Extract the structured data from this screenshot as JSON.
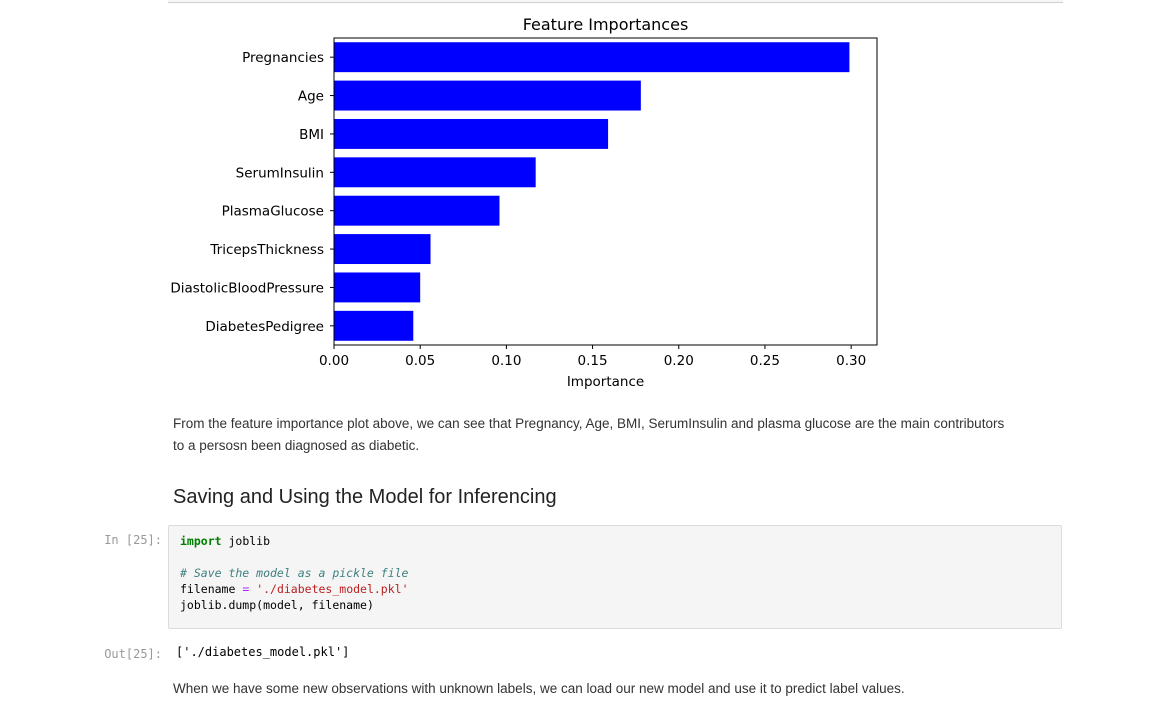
{
  "chart_data": {
    "type": "bar",
    "orientation": "horizontal",
    "title": "Feature Importances",
    "xlabel": "Importance",
    "ylabel": "",
    "categories": [
      "DiabetesPedigree",
      "DiastolicBloodPressure",
      "TricepsThickness",
      "PlasmaGlucose",
      "SerumInsulin",
      "BMI",
      "Age",
      "Pregnancies"
    ],
    "values": [
      0.046,
      0.05,
      0.056,
      0.096,
      0.117,
      0.159,
      0.178,
      0.299
    ],
    "xlim": [
      0,
      0.315
    ],
    "xticks": [
      "0.00",
      "0.05",
      "0.10",
      "0.15",
      "0.20",
      "0.25",
      "0.30"
    ],
    "grid": false,
    "legend": "none",
    "bar_color": "#0000ff"
  },
  "notebook": {
    "paragraph1_line1": "From the feature importance plot above, we can see that Pregnancy, Age, BMI, SerumInsulin and plasma glucose are the main contributors",
    "paragraph1_line2": "to a persosn been diagnosed as diabetic.",
    "heading": "Saving and Using the Model for Inferencing",
    "in_prompt": "In [25]:",
    "out_prompt": "Out[25]:",
    "code": {
      "line1_kw": "import",
      "line1_rest": " joblib",
      "comment": "# Save the model as a pickle file",
      "line3_name": "filename ",
      "line3_eq": "=",
      "line3_str": "'./diabetes_model.pkl'",
      "line4_a": "joblib.dump",
      "line4_b": "(model",
      "line4_c": ", filename",
      "line4_d": ")"
    },
    "output": "['./diabetes_model.pkl']",
    "paragraph2": "When we have some new observations with unknown labels, we can load our new model and use it to predict label values."
  }
}
